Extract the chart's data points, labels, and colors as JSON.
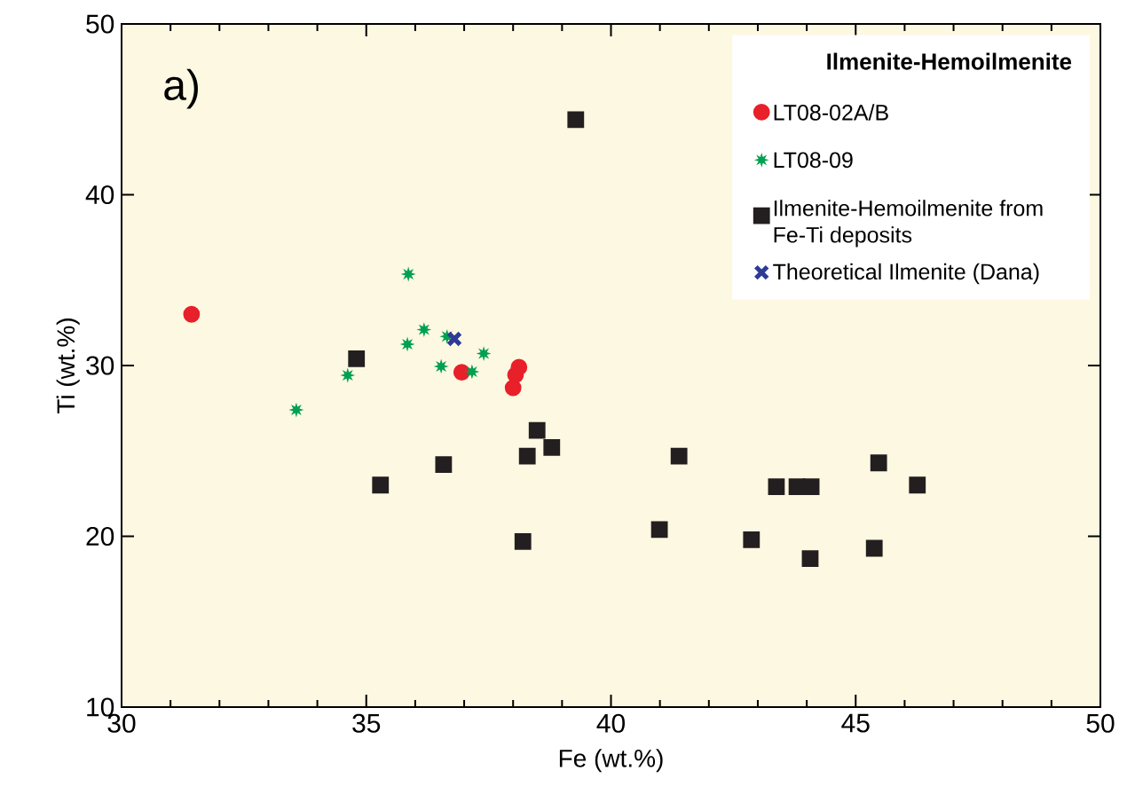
{
  "chart_data": {
    "type": "scatter",
    "xlabel": "Fe (wt.%)",
    "ylabel": "Ti (wt.%)",
    "legend_title": "Ilmenite-Hemoilmenite",
    "legend": "top right",
    "grid": false,
    "annotations": [
      "a)"
    ],
    "xlim": [
      30,
      50
    ],
    "ylim": [
      10,
      50
    ],
    "xticks": [
      30,
      {
        "value": 31,
        "label": null
      },
      {
        "value": 32,
        "label": null
      },
      {
        "value": 33,
        "label": null
      },
      {
        "value": 34,
        "label": null
      },
      35,
      {
        "value": 36,
        "label": null
      },
      {
        "value": 37,
        "label": null
      },
      {
        "value": 38,
        "label": null
      },
      {
        "value": 39,
        "label": null
      },
      40,
      {
        "value": 41,
        "label": null
      },
      {
        "value": 42,
        "label": null
      },
      {
        "value": 43,
        "label": null
      },
      {
        "value": 44,
        "label": null
      },
      45,
      {
        "value": 46,
        "label": null
      },
      {
        "value": 47,
        "label": null
      },
      {
        "value": 48,
        "label": null
      },
      {
        "value": 49,
        "label": null
      },
      50
    ],
    "yticks": [
      10,
      20,
      30,
      40,
      50
    ],
    "series": [
      {
        "name": "LT08-02A/B",
        "color": "#e8202a",
        "marker": "circle",
        "x": [
          31.43,
          36.95,
          38.12,
          38.05,
          38.0
        ],
        "values": [
          33.0,
          29.6,
          29.9,
          29.45,
          28.7
        ]
      },
      {
        "name": "LT08-09",
        "color": "#00a050",
        "marker": "star",
        "x": [
          35.86,
          36.18,
          35.84,
          36.65,
          37.4,
          36.53,
          37.16,
          34.62,
          33.57
        ],
        "values": [
          35.35,
          32.1,
          31.25,
          31.7,
          30.7,
          29.95,
          29.64,
          29.43,
          27.4
        ]
      },
      {
        "name": "Ilmenite-Hemoilmenite from Fe-Ti deposits",
        "color": "#231f20",
        "marker": "square",
        "x": [
          34.8,
          38.49,
          38.79,
          38.29,
          36.58,
          35.29,
          38.2,
          41.39,
          40.99,
          45.47,
          43.38,
          43.8,
          44.09,
          46.26,
          42.87,
          44.07,
          45.38,
          39.28
        ],
        "values": [
          30.4,
          26.2,
          25.2,
          24.7,
          24.2,
          23.0,
          19.7,
          24.7,
          20.4,
          24.3,
          22.9,
          22.9,
          22.9,
          23.0,
          19.8,
          18.7,
          19.3,
          44.4
        ]
      },
      {
        "name": "Theoretical Ilmenite (Dana)",
        "color": "#2e3a96",
        "marker": "cross",
        "x": [
          36.8
        ],
        "values": [
          31.56
        ]
      }
    ]
  }
}
